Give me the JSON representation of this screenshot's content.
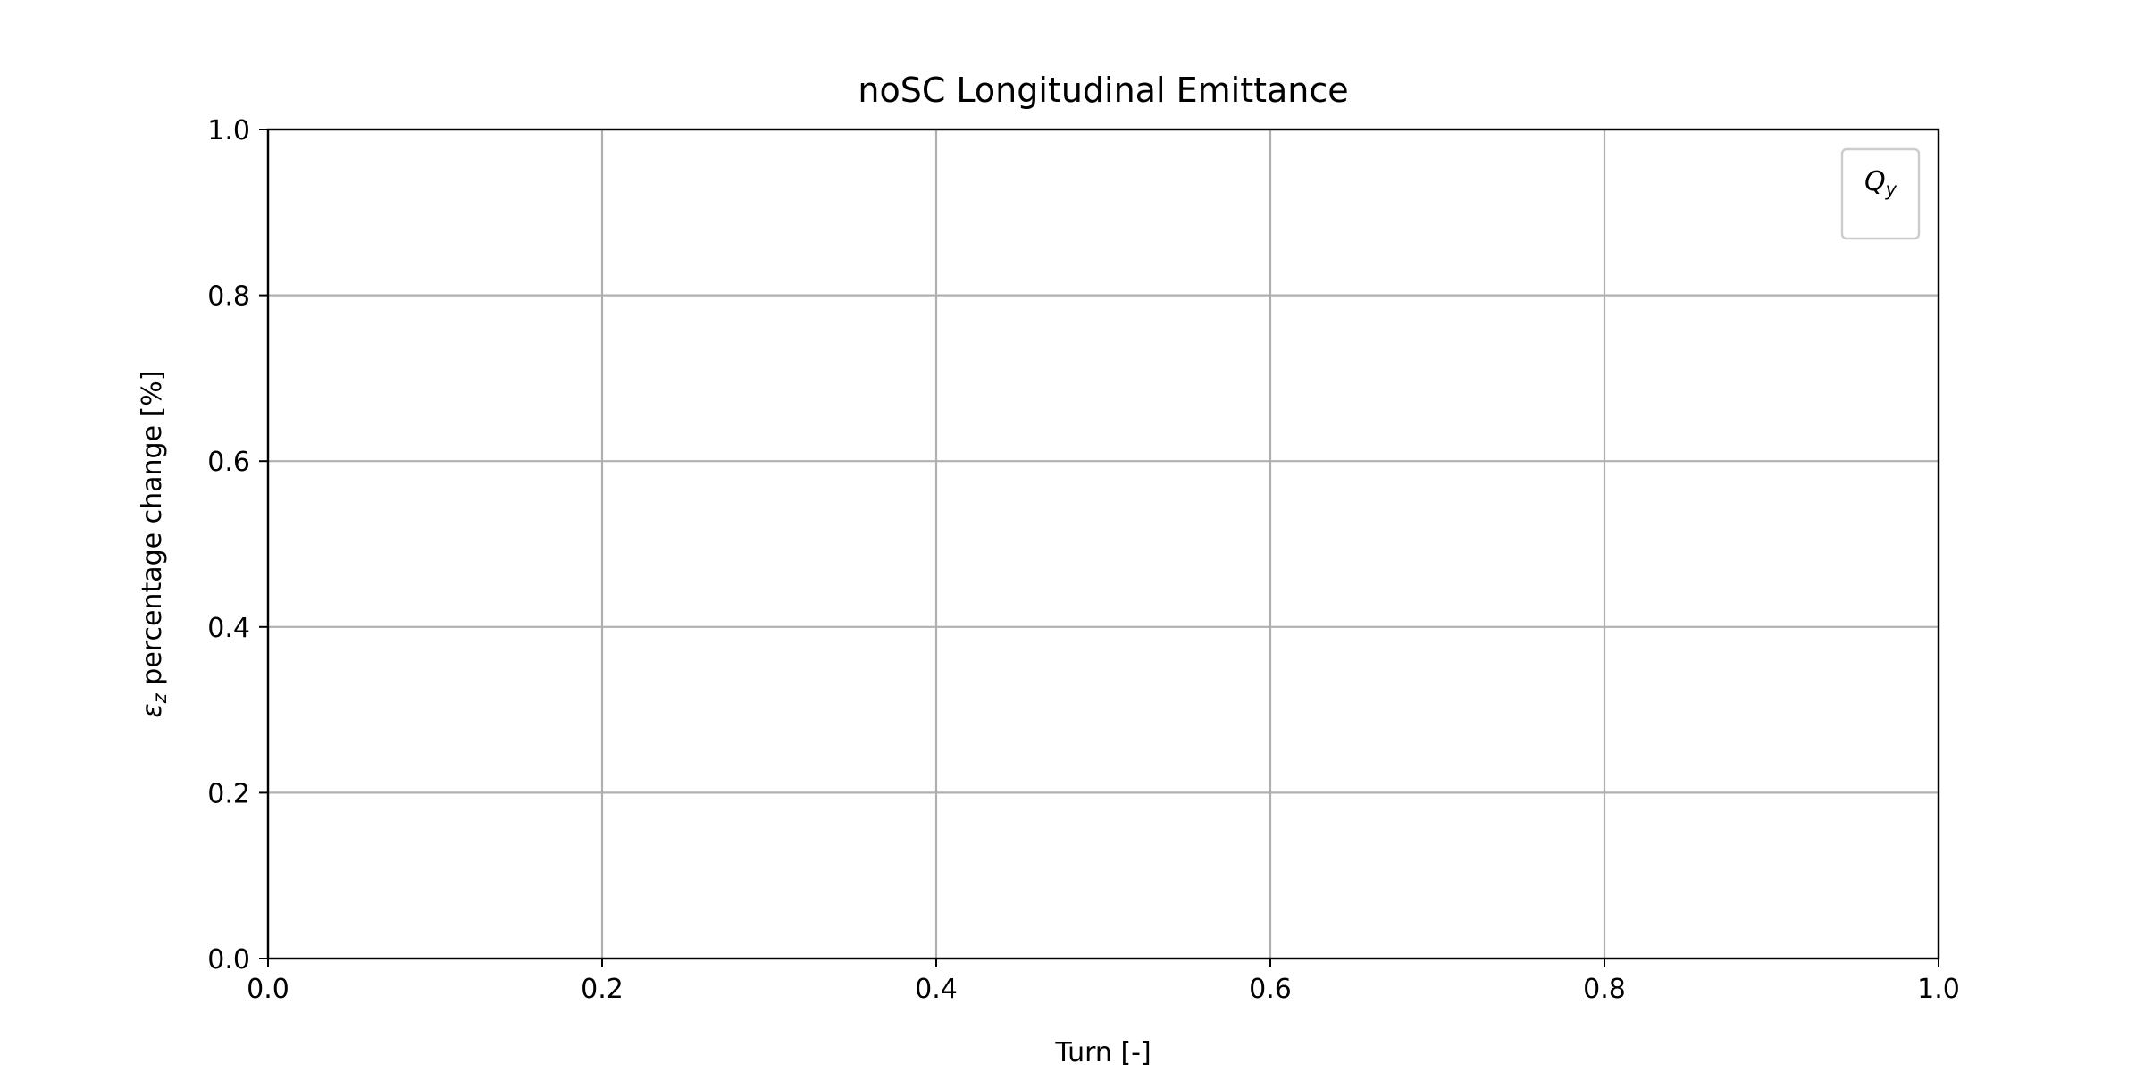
{
  "chart_data": {
    "type": "line",
    "title": "noSC Longitudinal Emittance",
    "xlabel": "Turn [-]",
    "ylabel_symbol": "ε",
    "ylabel_subscript": "z",
    "ylabel_rest": " percentage change [%]",
    "xlim": [
      0.0,
      1.0
    ],
    "ylim": [
      0.0,
      1.0
    ],
    "xticks": [
      "0.0",
      "0.2",
      "0.4",
      "0.6",
      "0.8",
      "1.0"
    ],
    "yticks": [
      "0.0",
      "0.2",
      "0.4",
      "0.6",
      "0.8",
      "1.0"
    ],
    "grid": true,
    "legend": {
      "placement": "top-right",
      "entry_symbol": "Q",
      "entry_subscript": "y"
    },
    "series": [],
    "colors": {
      "axes": "#000000",
      "grid": "#b0b0b0",
      "legend_border": "#cccccc",
      "background": "#ffffff"
    }
  }
}
